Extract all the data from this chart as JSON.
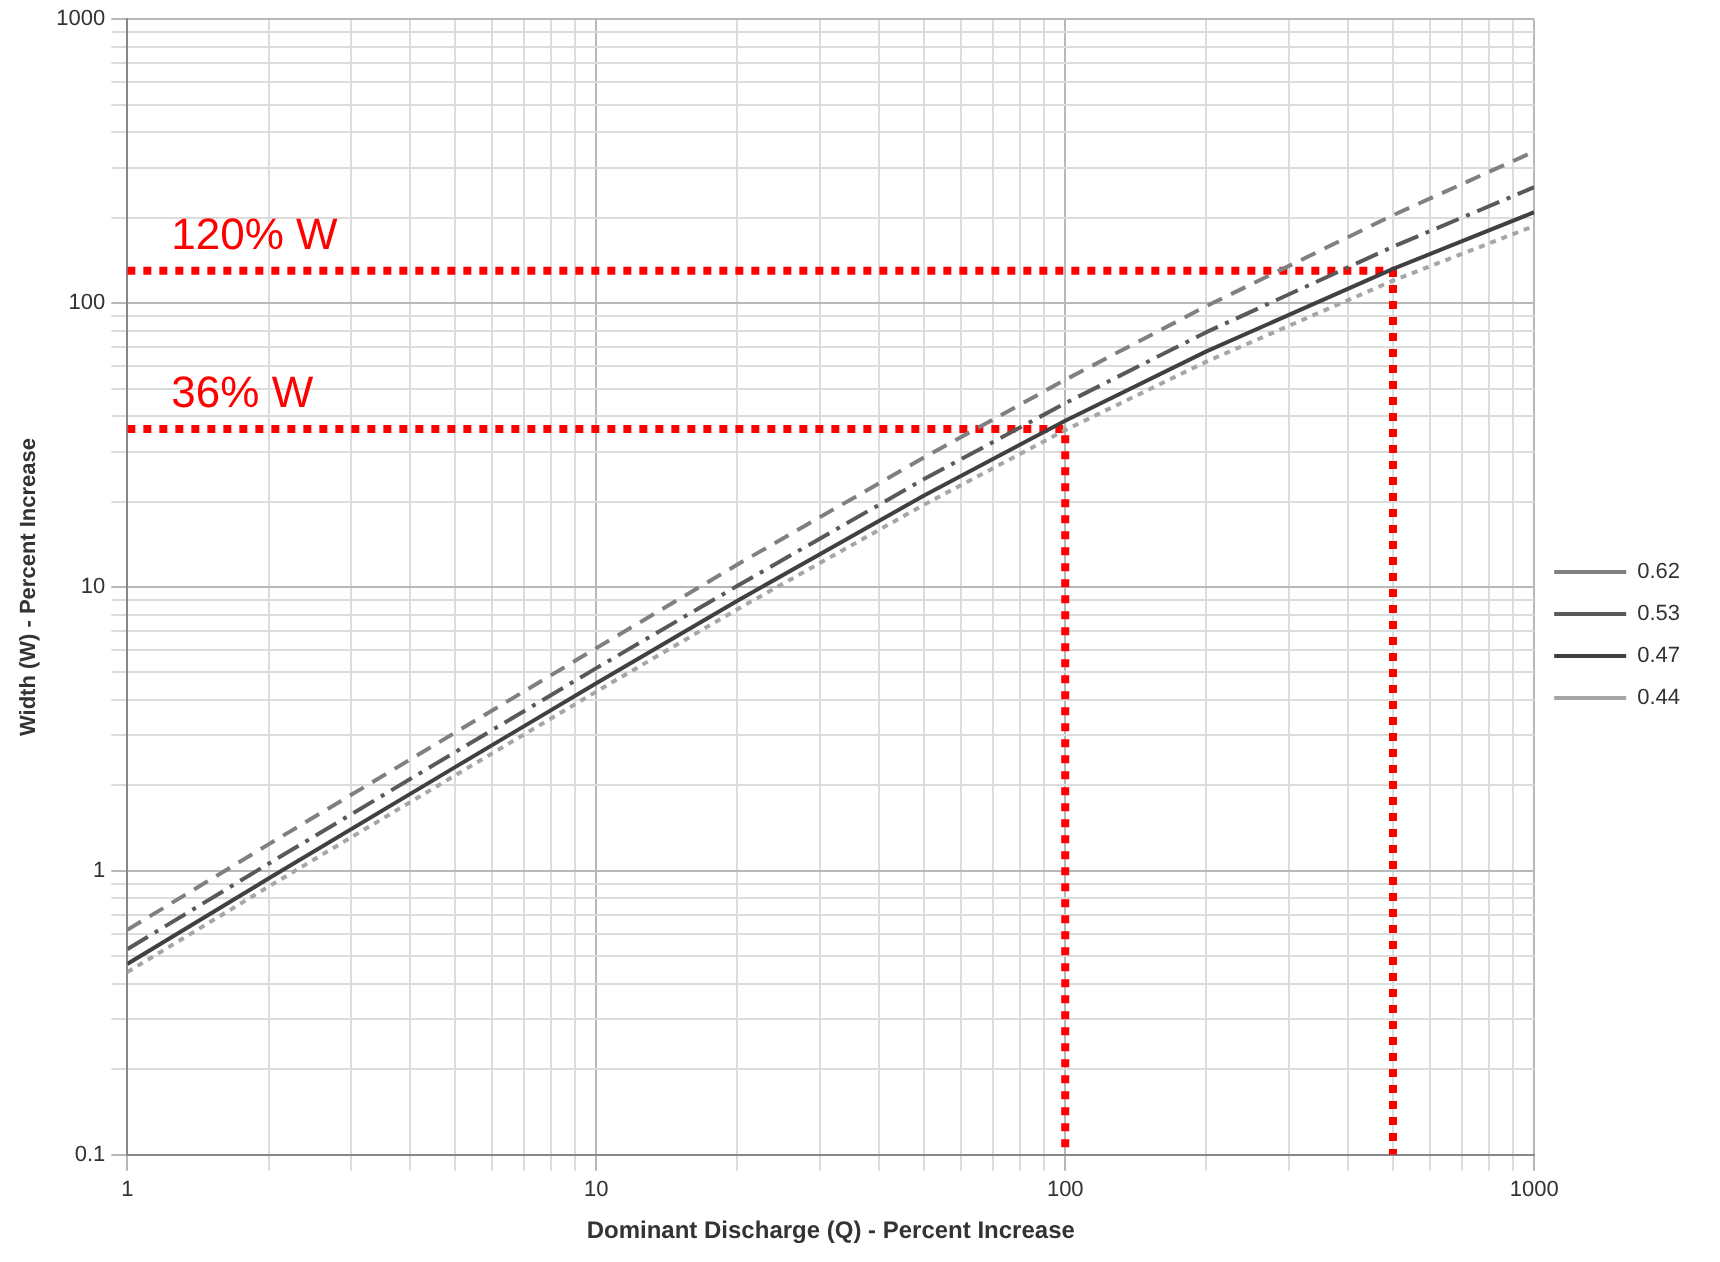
{
  "chart_data": {
    "type": "line",
    "xlabel": "Dominant Discharge (Q) - Percent Increase",
    "ylabel": "Width (W) - Percent Increase",
    "log": "xy",
    "grid": true,
    "legend": "right",
    "marker": "none",
    "xlim": [
      1,
      1000
    ],
    "xticks": [
      1,
      10,
      100,
      1000
    ],
    "ylim": [
      0.1,
      1000
    ],
    "yticks": [
      0.1,
      1,
      10,
      100,
      1000
    ],
    "x": [
      1,
      2,
      5,
      10,
      20,
      50,
      100,
      200,
      500,
      1000
    ],
    "series": [
      {
        "name": "0.62",
        "color": "#808080",
        "line_style": "dashed",
        "values": [
          0.62,
          1.24,
          3.07,
          6.09,
          12.0,
          28.6,
          53.7,
          97.6,
          204,
          342
        ]
      },
      {
        "name": "0.53",
        "color": "#595959",
        "line_style": "dashdot",
        "values": [
          0.53,
          1.06,
          2.62,
          5.18,
          10.1,
          24.0,
          44.4,
          79.0,
          158,
          256
        ]
      },
      {
        "name": "0.47",
        "color": "#404040",
        "line_style": "solid",
        "values": [
          0.47,
          0.94,
          2.32,
          4.58,
          8.95,
          21.0,
          38.5,
          67.6,
          132,
          209
        ]
      },
      {
        "name": "0.44",
        "color": "#a6a6a6",
        "line_style": "dotted",
        "values": [
          0.44,
          0.88,
          2.17,
          4.28,
          8.35,
          19.5,
          35.7,
          62.2,
          120,
          187
        ]
      },
      {
        "color": "#ff0000",
        "line_style": "dotted",
        "x": [
          1,
          100,
          100
        ],
        "values": [
          36,
          36,
          0.1
        ]
      },
      {
        "color": "#ff0000",
        "line_style": "dotted",
        "x": [
          1,
          500,
          500
        ],
        "values": [
          130,
          130,
          0.1
        ]
      }
    ],
    "annotations": [
      {
        "text": "36% W",
        "x": 1,
        "y": 36
      },
      {
        "text": "120% W",
        "x": 1,
        "y": 130
      }
    ]
  }
}
